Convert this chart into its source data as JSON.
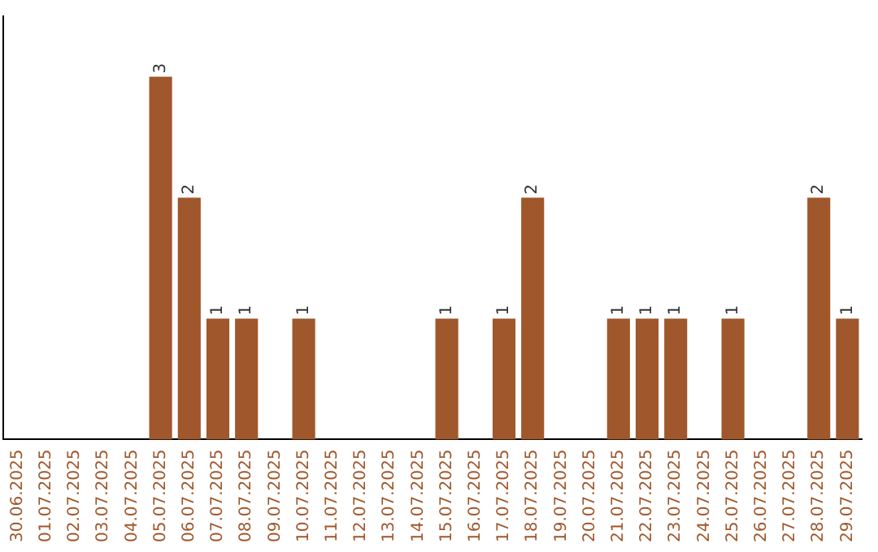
{
  "chart_data": {
    "type": "bar",
    "categories": [
      "30.06.2025",
      "01.07.2025",
      "02.07.2025",
      "03.07.2025",
      "04.07.2025",
      "05.07.2025",
      "06.07.2025",
      "07.07.2025",
      "08.07.2025",
      "09.07.2025",
      "10.07.2025",
      "11.07.2025",
      "12.07.2025",
      "13.07.2025",
      "14.07.2025",
      "15.07.2025",
      "16.07.2025",
      "17.07.2025",
      "18.07.2025",
      "19.07.2025",
      "20.07.2025",
      "21.07.2025",
      "22.07.2025",
      "23.07.2025",
      "24.07.2025",
      "25.07.2025",
      "26.07.2025",
      "27.07.2025",
      "28.07.2025",
      "29.07.2025"
    ],
    "values": [
      0,
      0,
      0,
      0,
      0,
      3,
      2,
      1,
      1,
      0,
      1,
      0,
      0,
      0,
      0,
      1,
      0,
      1,
      2,
      0,
      0,
      1,
      1,
      1,
      0,
      1,
      0,
      0,
      2,
      1
    ],
    "value_labels": [
      null,
      null,
      null,
      null,
      null,
      "3",
      "2",
      "1",
      "1",
      null,
      "1",
      null,
      null,
      null,
      null,
      "1",
      null,
      "1",
      "2",
      null,
      null,
      "1",
      "1",
      "1",
      null,
      "1",
      null,
      null,
      "2",
      "1"
    ],
    "color": "#a0572b",
    "tick_labels": "x",
    "grid": false,
    "legend": false
  }
}
